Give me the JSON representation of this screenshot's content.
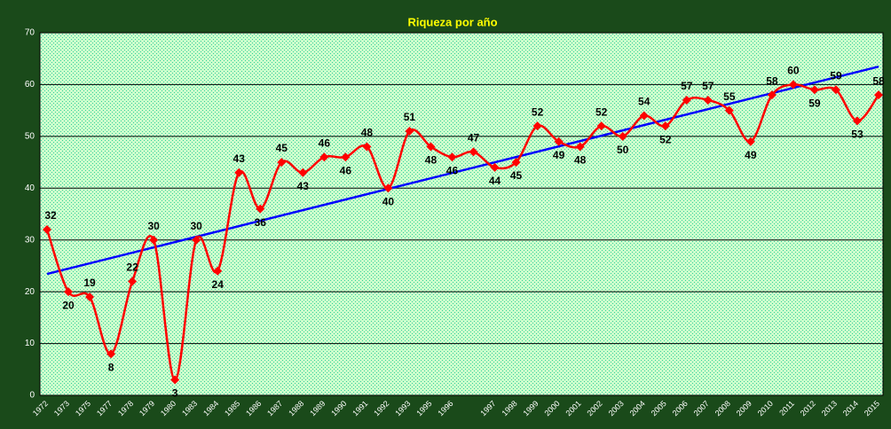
{
  "chart_data": {
    "type": "line",
    "title": "Riqueza por año",
    "categories": [
      "1972",
      "1973",
      "1975",
      "1977",
      "1978",
      "1979",
      "1980",
      "1983",
      "1984",
      "1985",
      "1986",
      "1987",
      "1988",
      "1989",
      "1990",
      "1991",
      "1992",
      "1993",
      "1995",
      "1996",
      null,
      "1997",
      "1998",
      "1999",
      "2000",
      "2001",
      "2002",
      "2003",
      "2004",
      "2005",
      "2006",
      "2007",
      "2008",
      "2009",
      "2010",
      "2011",
      "2012",
      "2013",
      "2014",
      "2015"
    ],
    "series": [
      {
        "color": "#ff0000",
        "values": [
          32,
          20,
          19,
          8,
          22,
          30,
          3,
          30,
          24,
          43,
          36,
          45,
          43,
          46,
          46,
          48,
          40,
          51,
          48,
          46,
          47,
          44,
          45,
          52,
          49,
          48,
          52,
          50,
          54,
          52,
          57,
          57,
          55,
          49,
          58,
          60,
          59,
          59,
          53,
          58
        ]
      }
    ],
    "ylim": [
      0,
      70
    ],
    "yticks": [
      0,
      10,
      20,
      30,
      40,
      50,
      60,
      70
    ],
    "grid": true,
    "trendline": true,
    "trendline_color": "#0000ff",
    "smooth": true
  }
}
